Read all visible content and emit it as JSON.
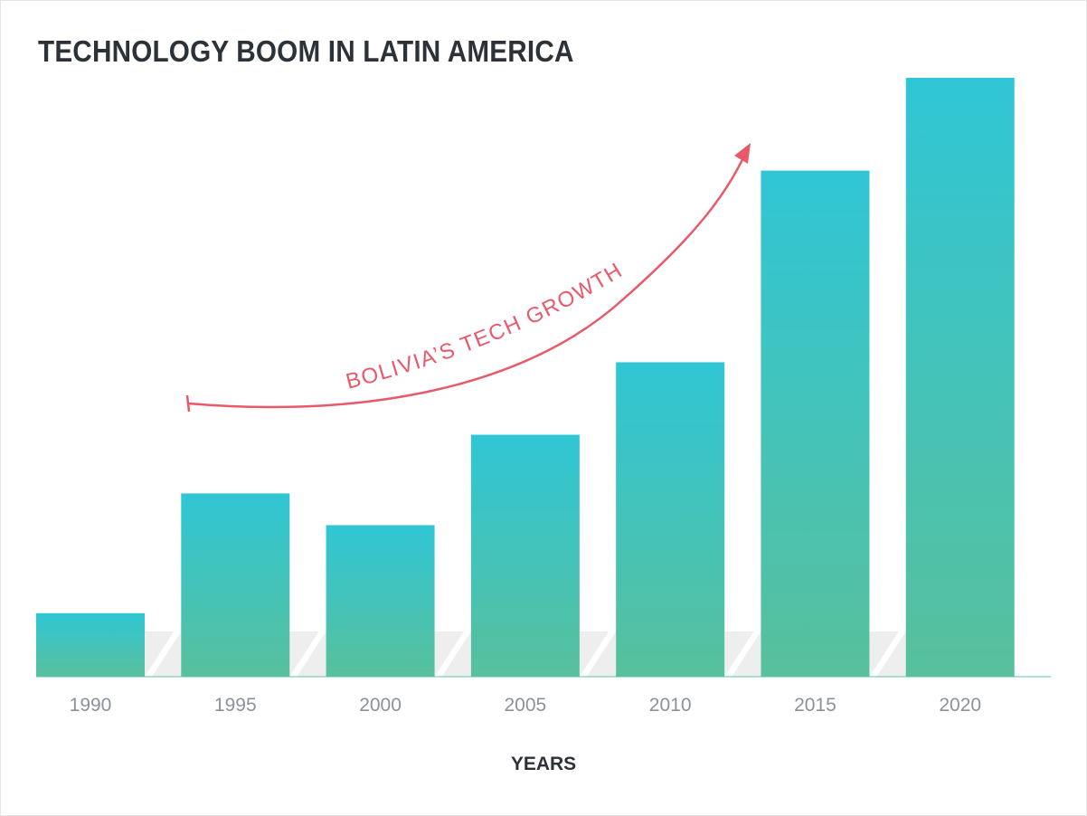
{
  "chart_data": {
    "type": "bar",
    "title": "TECHNOLOGY BOOM IN LATIN AMERICA",
    "xlabel": "YEARS",
    "ylabel": "",
    "categories": [
      "1990",
      "1995",
      "2000",
      "2005",
      "2010",
      "2015",
      "2020"
    ],
    "values": [
      10.6,
      30.6,
      25.3,
      40.4,
      52.5,
      84.5,
      100
    ],
    "ylim": [
      0,
      100
    ],
    "grid": false,
    "legend": "none",
    "annotation": {
      "text": "BOLIVIA’S TECH GROWTH",
      "color": "#e8596a"
    },
    "colors": {
      "bar_top": "#30c6d6",
      "bar_bottom": "#58c09c",
      "band": "#eeeeee"
    }
  }
}
